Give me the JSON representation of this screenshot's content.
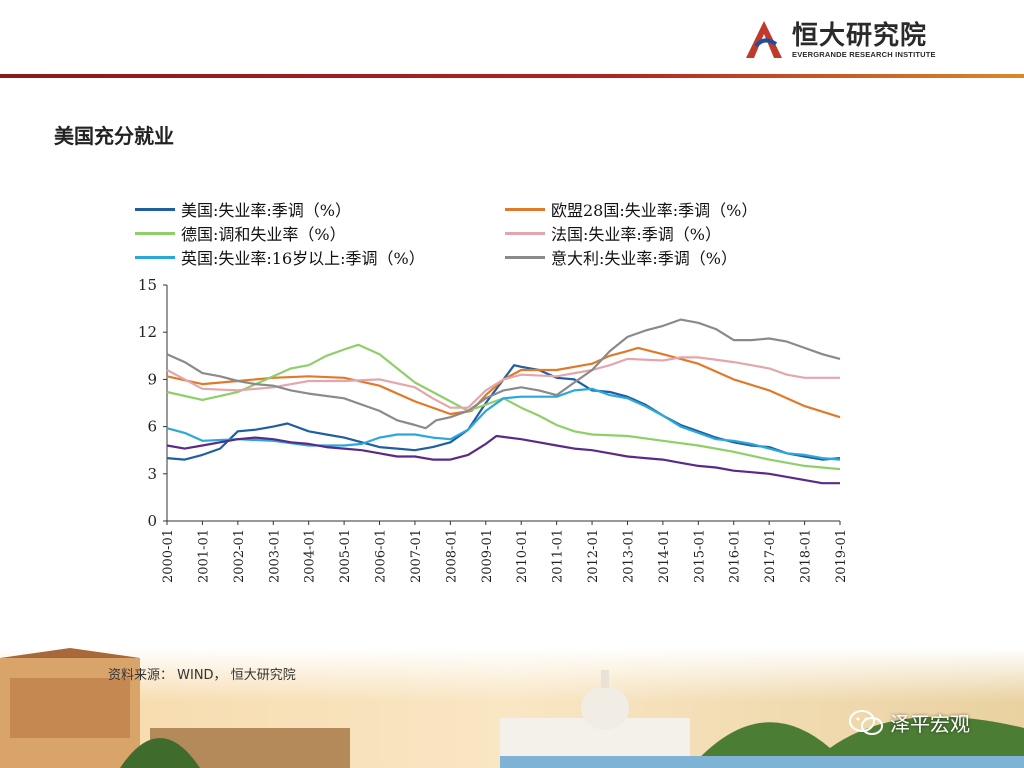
{
  "header": {
    "logo_cn": "恒大研究院",
    "logo_en": "EVERGRANDE RESEARCH INSTITUTE"
  },
  "page_title": "美国充分就业",
  "source_text": "资料来源： WIND， 恒大研究院",
  "watermark": "泽平宏观",
  "colors": {
    "brand_red": "#b22222",
    "us": "#1f5fa0",
    "eu28": "#e07a2a",
    "de": "#8fcf6a",
    "fr": "#e3a6ad",
    "uk": "#29a8d9",
    "it": "#8a8a8a",
    "purple": "#5b2a86"
  },
  "chart_data": {
    "type": "line",
    "title": "",
    "xlabel": "",
    "ylabel": "",
    "ylim": [
      0,
      15
    ],
    "yticks": [
      "0",
      "3",
      "6",
      "9",
      "12",
      "15"
    ],
    "categories": [
      "2000-01",
      "2001-01",
      "2002-01",
      "2003-01",
      "2004-01",
      "2005-01",
      "2006-01",
      "2007-01",
      "2008-01",
      "2009-01",
      "2010-01",
      "2011-01",
      "2012-01",
      "2013-01",
      "2014-01",
      "2015-01",
      "2016-01",
      "2017-01",
      "2018-01",
      "2019-01"
    ],
    "series": [
      {
        "name": "美国:失业率:季调（%）",
        "color": "#1f5fa0",
        "values": [
          [
            0,
            4.0
          ],
          [
            0.5,
            3.9
          ],
          [
            1,
            4.2
          ],
          [
            1.5,
            4.6
          ],
          [
            2,
            5.7
          ],
          [
            2.5,
            5.8
          ],
          [
            3,
            6.0
          ],
          [
            3.4,
            6.2
          ],
          [
            4,
            5.7
          ],
          [
            4.5,
            5.5
          ],
          [
            5,
            5.3
          ],
          [
            5.5,
            5.0
          ],
          [
            6,
            4.7
          ],
          [
            6.5,
            4.6
          ],
          [
            7,
            4.5
          ],
          [
            7.5,
            4.7
          ],
          [
            8,
            5.0
          ],
          [
            8.5,
            5.8
          ],
          [
            9,
            7.5
          ],
          [
            9.5,
            9.0
          ],
          [
            9.8,
            9.9
          ],
          [
            10,
            9.8
          ],
          [
            10.5,
            9.6
          ],
          [
            11,
            9.1
          ],
          [
            11.5,
            9.0
          ],
          [
            12,
            8.3
          ],
          [
            12.5,
            8.2
          ],
          [
            13,
            7.9
          ],
          [
            13.5,
            7.4
          ],
          [
            14,
            6.7
          ],
          [
            14.5,
            6.1
          ],
          [
            15,
            5.7
          ],
          [
            15.5,
            5.3
          ],
          [
            16,
            5.0
          ],
          [
            16.5,
            4.8
          ],
          [
            17,
            4.7
          ],
          [
            17.5,
            4.3
          ],
          [
            18,
            4.1
          ],
          [
            18.5,
            3.9
          ],
          [
            19,
            4.0
          ]
        ]
      },
      {
        "name": "欧盟28国:失业率:季调（%）",
        "color": "#e07a2a",
        "values": [
          [
            0,
            9.2
          ],
          [
            1,
            8.7
          ],
          [
            2,
            8.9
          ],
          [
            3,
            9.1
          ],
          [
            4,
            9.2
          ],
          [
            5,
            9.1
          ],
          [
            6,
            8.6
          ],
          [
            7,
            7.6
          ],
          [
            8,
            6.8
          ],
          [
            8.6,
            7.0
          ],
          [
            9,
            8.0
          ],
          [
            9.5,
            9.0
          ],
          [
            10,
            9.6
          ],
          [
            11,
            9.6
          ],
          [
            12,
            10.0
          ],
          [
            12.5,
            10.5
          ],
          [
            13,
            10.8
          ],
          [
            13.3,
            11.0
          ],
          [
            14,
            10.6
          ],
          [
            15,
            10.0
          ],
          [
            16,
            9.0
          ],
          [
            17,
            8.3
          ],
          [
            18,
            7.3
          ],
          [
            19,
            6.6
          ]
        ]
      },
      {
        "name": "德国:调和失业率（%）",
        "color": "#8fcf6a",
        "values": [
          [
            0,
            8.2
          ],
          [
            1,
            7.7
          ],
          [
            2,
            8.2
          ],
          [
            3,
            9.2
          ],
          [
            3.5,
            9.7
          ],
          [
            4,
            9.9
          ],
          [
            4.5,
            10.5
          ],
          [
            5,
            10.9
          ],
          [
            5.4,
            11.2
          ],
          [
            6,
            10.6
          ],
          [
            6.5,
            9.7
          ],
          [
            7,
            8.8
          ],
          [
            8,
            7.6
          ],
          [
            8.5,
            7.0
          ],
          [
            9,
            7.4
          ],
          [
            9.5,
            7.8
          ],
          [
            10,
            7.2
          ],
          [
            10.5,
            6.7
          ],
          [
            11,
            6.1
          ],
          [
            11.5,
            5.7
          ],
          [
            12,
            5.5
          ],
          [
            13,
            5.4
          ],
          [
            14,
            5.1
          ],
          [
            15,
            4.8
          ],
          [
            16,
            4.4
          ],
          [
            17,
            3.9
          ],
          [
            18,
            3.5
          ],
          [
            19,
            3.3
          ]
        ]
      },
      {
        "name": "法国:失业率:季调（%）",
        "color": "#e3a6ad",
        "values": [
          [
            0,
            9.6
          ],
          [
            0.5,
            9.0
          ],
          [
            1,
            8.4
          ],
          [
            2,
            8.3
          ],
          [
            3,
            8.5
          ],
          [
            4,
            8.9
          ],
          [
            5,
            8.9
          ],
          [
            6,
            9.0
          ],
          [
            7,
            8.5
          ],
          [
            7.5,
            7.8
          ],
          [
            8,
            7.2
          ],
          [
            8.5,
            7.2
          ],
          [
            9,
            8.3
          ],
          [
            9.5,
            9.0
          ],
          [
            10,
            9.3
          ],
          [
            11,
            9.2
          ],
          [
            12,
            9.6
          ],
          [
            12.5,
            9.9
          ],
          [
            13,
            10.3
          ],
          [
            14,
            10.2
          ],
          [
            14.5,
            10.4
          ],
          [
            15,
            10.4
          ],
          [
            16,
            10.1
          ],
          [
            17,
            9.7
          ],
          [
            17.5,
            9.3
          ],
          [
            18,
            9.1
          ],
          [
            19,
            9.1
          ]
        ]
      },
      {
        "name": "英国:失业率:16岁以上:季调（%）",
        "color": "#29a8d9",
        "values": [
          [
            0,
            5.9
          ],
          [
            0.5,
            5.6
          ],
          [
            1,
            5.1
          ],
          [
            2,
            5.2
          ],
          [
            3,
            5.1
          ],
          [
            4,
            4.8
          ],
          [
            5,
            4.8
          ],
          [
            5.5,
            4.9
          ],
          [
            6,
            5.3
          ],
          [
            6.5,
            5.5
          ],
          [
            7,
            5.5
          ],
          [
            7.5,
            5.3
          ],
          [
            8,
            5.2
          ],
          [
            8.5,
            5.8
          ],
          [
            9,
            7.0
          ],
          [
            9.5,
            7.8
          ],
          [
            10,
            7.9
          ],
          [
            10.5,
            7.9
          ],
          [
            11,
            7.9
          ],
          [
            11.5,
            8.3
          ],
          [
            12,
            8.4
          ],
          [
            12.5,
            8.0
          ],
          [
            13,
            7.8
          ],
          [
            13.5,
            7.3
          ],
          [
            14,
            6.7
          ],
          [
            14.5,
            6.0
          ],
          [
            15,
            5.6
          ],
          [
            15.5,
            5.2
          ],
          [
            16,
            5.1
          ],
          [
            16.5,
            4.9
          ],
          [
            17,
            4.6
          ],
          [
            17.5,
            4.3
          ],
          [
            18,
            4.2
          ],
          [
            18.5,
            4.0
          ],
          [
            19,
            3.9
          ]
        ]
      },
      {
        "name": "意大利:失业率:季调（%）",
        "color": "#8a8a8a",
        "values": [
          [
            0,
            10.6
          ],
          [
            0.5,
            10.1
          ],
          [
            1,
            9.4
          ],
          [
            1.5,
            9.2
          ],
          [
            2,
            8.9
          ],
          [
            2.5,
            8.7
          ],
          [
            3,
            8.6
          ],
          [
            3.5,
            8.3
          ],
          [
            4,
            8.1
          ],
          [
            5,
            7.8
          ],
          [
            5.5,
            7.4
          ],
          [
            6,
            7.0
          ],
          [
            6.5,
            6.4
          ],
          [
            7,
            6.1
          ],
          [
            7.3,
            5.9
          ],
          [
            7.6,
            6.4
          ],
          [
            8,
            6.6
          ],
          [
            8.5,
            7.0
          ],
          [
            9,
            7.8
          ],
          [
            9.5,
            8.3
          ],
          [
            10,
            8.5
          ],
          [
            10.5,
            8.3
          ],
          [
            11,
            8.0
          ],
          [
            11.5,
            8.8
          ],
          [
            12,
            9.6
          ],
          [
            12.5,
            10.8
          ],
          [
            13,
            11.7
          ],
          [
            13.5,
            12.1
          ],
          [
            14,
            12.4
          ],
          [
            14.5,
            12.8
          ],
          [
            15,
            12.6
          ],
          [
            15.5,
            12.2
          ],
          [
            16,
            11.5
          ],
          [
            16.5,
            11.5
          ],
          [
            17,
            11.6
          ],
          [
            17.5,
            11.4
          ],
          [
            18,
            11.0
          ],
          [
            18.5,
            10.6
          ],
          [
            19,
            10.3
          ]
        ]
      },
      {
        "name": "",
        "color": "#5b2a86",
        "values": [
          [
            0,
            4.8
          ],
          [
            0.5,
            4.6
          ],
          [
            1,
            4.8
          ],
          [
            1.5,
            5.0
          ],
          [
            2,
            5.2
          ],
          [
            2.5,
            5.3
          ],
          [
            3,
            5.2
          ],
          [
            3.5,
            5.0
          ],
          [
            4,
            4.9
          ],
          [
            4.5,
            4.7
          ],
          [
            5,
            4.6
          ],
          [
            5.5,
            4.5
          ],
          [
            6,
            4.3
          ],
          [
            6.5,
            4.1
          ],
          [
            7,
            4.1
          ],
          [
            7.5,
            3.9
          ],
          [
            8,
            3.9
          ],
          [
            8.5,
            4.2
          ],
          [
            9,
            4.9
          ],
          [
            9.3,
            5.4
          ],
          [
            10,
            5.2
          ],
          [
            10.5,
            5.0
          ],
          [
            11,
            4.8
          ],
          [
            11.5,
            4.6
          ],
          [
            12,
            4.5
          ],
          [
            12.5,
            4.3
          ],
          [
            13,
            4.1
          ],
          [
            13.5,
            4.0
          ],
          [
            14,
            3.9
          ],
          [
            14.5,
            3.7
          ],
          [
            15,
            3.5
          ],
          [
            15.5,
            3.4
          ],
          [
            16,
            3.2
          ],
          [
            16.5,
            3.1
          ],
          [
            17,
            3.0
          ],
          [
            17.5,
            2.8
          ],
          [
            18,
            2.6
          ],
          [
            18.5,
            2.4
          ],
          [
            19,
            2.4
          ]
        ]
      }
    ],
    "legend_position": "top"
  }
}
